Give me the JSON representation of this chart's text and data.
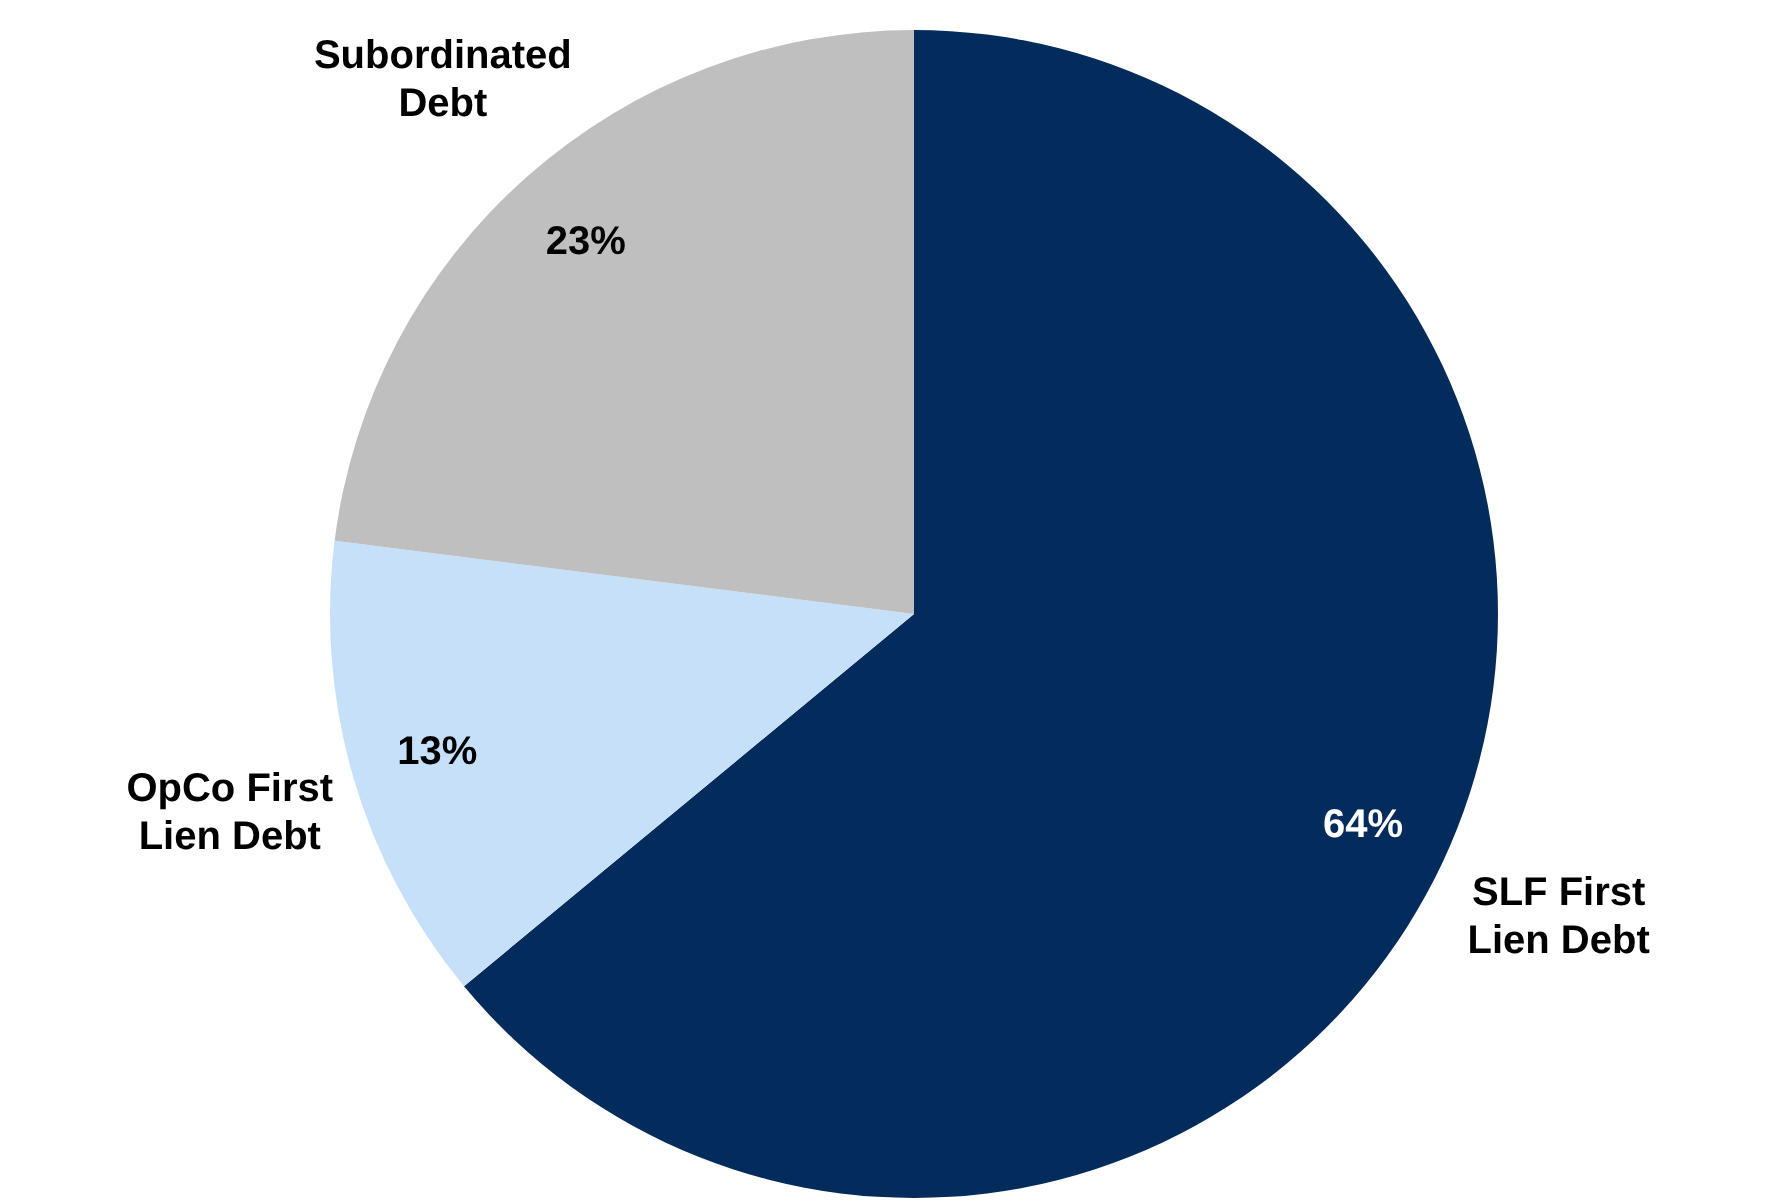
{
  "chart_data": {
    "type": "pie",
    "categories": [
      "SLF First Lien Debt",
      "OpCo First Lien Debt",
      "Subordinated Debt"
    ],
    "values": [
      64,
      13,
      23
    ],
    "value_labels": [
      "64%",
      "13%",
      "23%"
    ],
    "colors": [
      "#032b5c",
      "#c6e0fa",
      "#bfbfbf"
    ],
    "legend": false
  }
}
